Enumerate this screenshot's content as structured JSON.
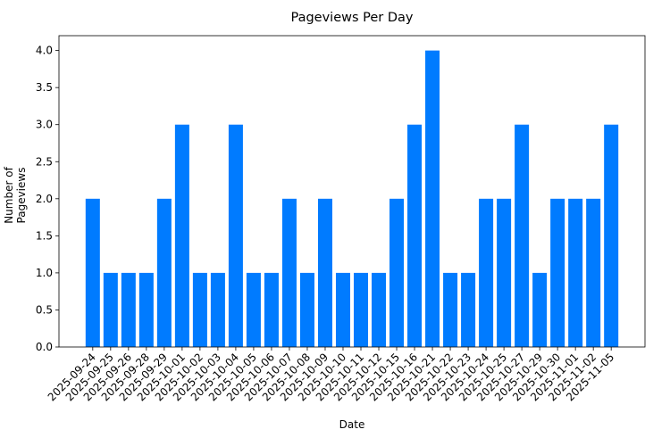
{
  "chart_data": {
    "type": "bar",
    "title": "Pageviews Per Day",
    "xlabel": "Date",
    "ylabel": "Number of Pageviews",
    "ylim": [
      0,
      4.2
    ],
    "yticks": [
      "0.0",
      "0.5",
      "1.0",
      "1.5",
      "2.0",
      "2.5",
      "3.0",
      "3.5",
      "4.0"
    ],
    "grid": false,
    "bar_color": "#007bff",
    "categories": [
      "2025-09-24",
      "2025-09-25",
      "2025-09-26",
      "2025-09-28",
      "2025-09-29",
      "2025-10-01",
      "2025-10-02",
      "2025-10-03",
      "2025-10-04",
      "2025-10-05",
      "2025-10-06",
      "2025-10-07",
      "2025-10-08",
      "2025-10-09",
      "2025-10-10",
      "2025-10-11",
      "2025-10-12",
      "2025-10-15",
      "2025-10-16",
      "2025-10-21",
      "2025-10-22",
      "2025-10-23",
      "2025-10-24",
      "2025-10-25",
      "2025-10-27",
      "2025-10-29",
      "2025-10-30",
      "2025-11-01",
      "2025-11-02",
      "2025-11-05"
    ],
    "values": [
      2,
      1,
      1,
      1,
      2,
      3,
      1,
      1,
      3,
      1,
      1,
      2,
      1,
      2,
      1,
      1,
      1,
      2,
      3,
      4,
      1,
      1,
      2,
      2,
      3,
      1,
      2,
      2,
      2,
      3
    ]
  }
}
